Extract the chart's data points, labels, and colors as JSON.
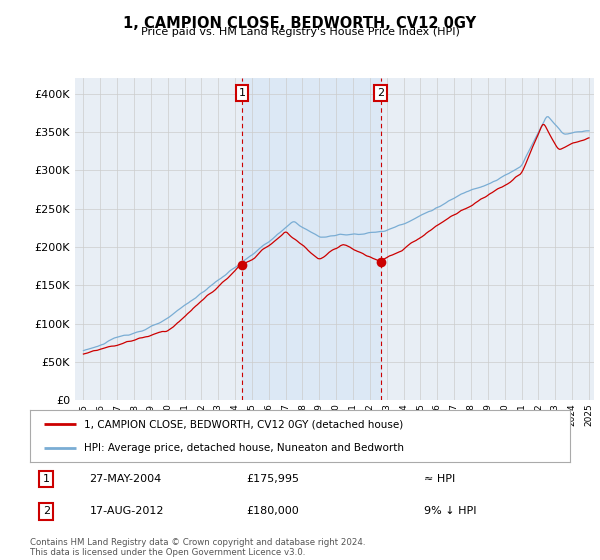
{
  "title": "1, CAMPION CLOSE, BEDWORTH, CV12 0GY",
  "subtitle": "Price paid vs. HM Land Registry's House Price Index (HPI)",
  "legend_line1": "1, CAMPION CLOSE, BEDWORTH, CV12 0GY (detached house)",
  "legend_line2": "HPI: Average price, detached house, Nuneaton and Bedworth",
  "footer": "Contains HM Land Registry data © Crown copyright and database right 2024.\nThis data is licensed under the Open Government Licence v3.0.",
  "annotation1_date": "27-MAY-2004",
  "annotation1_price": "£175,995",
  "annotation1_hpi": "≈ HPI",
  "annotation2_date": "17-AUG-2012",
  "annotation2_price": "£180,000",
  "annotation2_hpi": "9% ↓ HPI",
  "ylim": [
    0,
    420000
  ],
  "yticks": [
    0,
    50000,
    100000,
    150000,
    200000,
    250000,
    300000,
    350000,
    400000
  ],
  "red_color": "#cc0000",
  "blue_color": "#7aadd4",
  "shade_color": "#dce8f5",
  "background_color": "#e8eef5",
  "plot_bg": "#ffffff",
  "grid_color": "#cccccc",
  "sale1_x": 2004.41,
  "sale1_y": 175995,
  "sale2_x": 2012.63,
  "sale2_y": 180000,
  "xmin": 1995,
  "xmax": 2025
}
